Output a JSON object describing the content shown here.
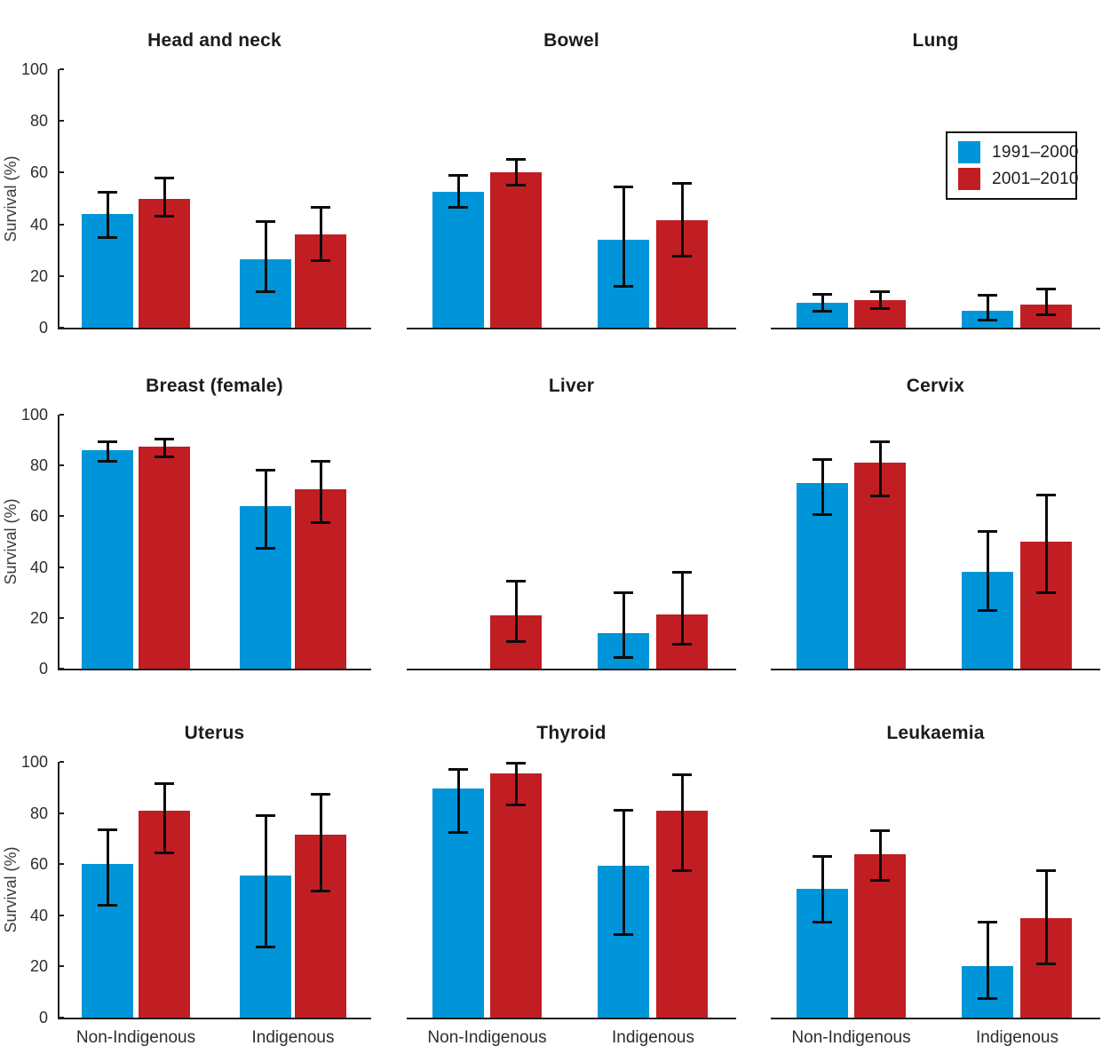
{
  "chart_data": {
    "type": "bar",
    "title": "",
    "ylabel": "Survival (%)",
    "ylim": [
      0,
      100
    ],
    "yticks": [
      0,
      20,
      40,
      60,
      80,
      100
    ],
    "grid": false,
    "categories": [
      "Non-Indigenous",
      "Indigenous"
    ],
    "legend_position": "upper right, inside Lung panel",
    "legend": [
      {
        "label": "1991–2000",
        "color": "#0095d9"
      },
      {
        "label": "2001–2010",
        "color": "#c11e24"
      }
    ],
    "panels": [
      {
        "title": "Head and neck",
        "series": [
          {
            "name": "1991–2000",
            "values": [
              44,
              26.5
            ],
            "ci_low": [
              35,
              14
            ],
            "ci_high": [
              52.5,
              41
            ]
          },
          {
            "name": "2001–2010",
            "values": [
              50,
              36
            ],
            "ci_low": [
              43,
              26
            ],
            "ci_high": [
              58,
              46.5
            ]
          }
        ]
      },
      {
        "title": "Bowel",
        "series": [
          {
            "name": "1991–2000",
            "values": [
              52.5,
              34
            ],
            "ci_low": [
              46.5,
              16
            ],
            "ci_high": [
              59,
              54.5
            ]
          },
          {
            "name": "2001–2010",
            "values": [
              60,
              41.5
            ],
            "ci_low": [
              55,
              27.5
            ],
            "ci_high": [
              65,
              56
            ]
          }
        ]
      },
      {
        "title": "Lung",
        "series": [
          {
            "name": "1991–2000",
            "values": [
              9.5,
              6.5
            ],
            "ci_low": [
              6.5,
              3
            ],
            "ci_high": [
              13,
              12.5
            ]
          },
          {
            "name": "2001–2010",
            "values": [
              10.5,
              9
            ],
            "ci_low": [
              7.5,
              5
            ],
            "ci_high": [
              14,
              15
            ]
          }
        ]
      },
      {
        "title": "Breast (female)",
        "series": [
          {
            "name": "1991–2000",
            "values": [
              86,
              64
            ],
            "ci_low": [
              81.5,
              47.5
            ],
            "ci_high": [
              89.5,
              78
            ]
          },
          {
            "name": "2001–2010",
            "values": [
              87.5,
              70.5
            ],
            "ci_low": [
              83.5,
              57.5
            ],
            "ci_high": [
              90.5,
              81.5
            ]
          }
        ]
      },
      {
        "title": "Liver",
        "series": [
          {
            "name": "1991–2000",
            "values": [
              0,
              14
            ],
            "ci_low": [
              0,
              4.5
            ],
            "ci_high": [
              0,
              30
            ]
          },
          {
            "name": "2001–2010",
            "values": [
              21,
              21.5
            ],
            "ci_low": [
              10.5,
              9.5
            ],
            "ci_high": [
              34.5,
              38
            ]
          }
        ]
      },
      {
        "title": "Cervix",
        "series": [
          {
            "name": "1991–2000",
            "values": [
              73,
              38
            ],
            "ci_low": [
              60.5,
              23
            ],
            "ci_high": [
              82.5,
              54
            ]
          },
          {
            "name": "2001–2010",
            "values": [
              81,
              50
            ],
            "ci_low": [
              68,
              30
            ],
            "ci_high": [
              89.5,
              68.5
            ]
          }
        ]
      },
      {
        "title": "Uterus",
        "series": [
          {
            "name": "1991–2000",
            "values": [
              60,
              55.5
            ],
            "ci_low": [
              44,
              27.5
            ],
            "ci_high": [
              73.5,
              79
            ]
          },
          {
            "name": "2001–2010",
            "values": [
              81,
              71.5
            ],
            "ci_low": [
              64.5,
              49.5
            ],
            "ci_high": [
              91.5,
              87.5
            ]
          }
        ]
      },
      {
        "title": "Thyroid",
        "series": [
          {
            "name": "1991–2000",
            "values": [
              89.5,
              59.5
            ],
            "ci_low": [
              72.5,
              32.5
            ],
            "ci_high": [
              97,
              81
            ]
          },
          {
            "name": "2001–2010",
            "values": [
              95.5,
              81
            ],
            "ci_low": [
              83,
              57.5
            ],
            "ci_high": [
              99.5,
              95
            ]
          }
        ]
      },
      {
        "title": "Leukaemia",
        "series": [
          {
            "name": "1991–2000",
            "values": [
              50.5,
              20
            ],
            "ci_low": [
              37.5,
              7.5
            ],
            "ci_high": [
              63,
              37.5
            ]
          },
          {
            "name": "2001–2010",
            "values": [
              64,
              39
            ],
            "ci_low": [
              53.5,
              21
            ],
            "ci_high": [
              73,
              57.5
            ]
          }
        ]
      }
    ]
  }
}
